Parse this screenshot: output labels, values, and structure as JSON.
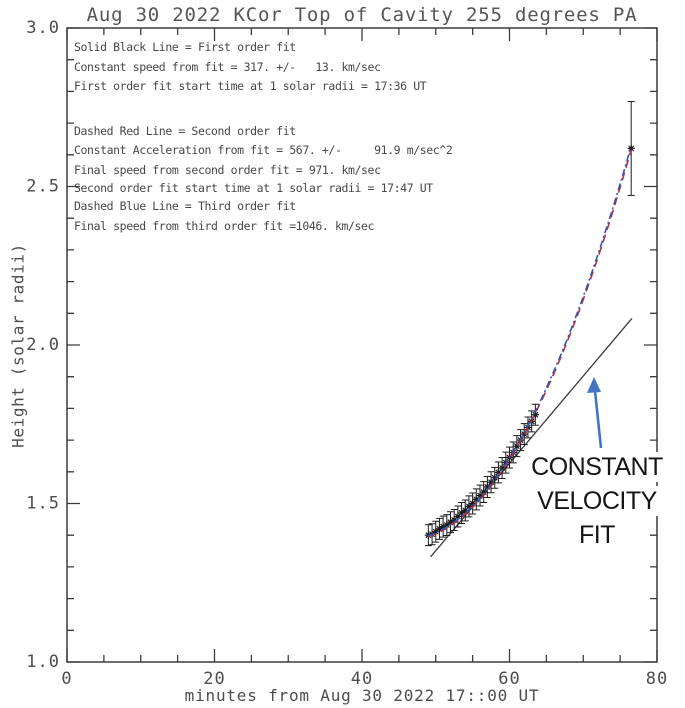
{
  "title": "Aug 30 2022 KCor Top of Cavity 255 degrees PA",
  "legend": {
    "first_order": [
      "Solid Black Line = First order fit",
      "Constant speed from fit = 317. +/-   13. km/sec",
      "First order fit start time at 1 solar radii = 17:36 UT"
    ],
    "second_order": [
      "Dashed Red Line = Second order fit",
      "Constant Acceleration from fit = 567. +/-     91.9 m/sec^2",
      "Final speed from second order fit = 971. km/sec",
      "Second order fit start time at 1 solar radii = 17:47 UT"
    ],
    "third_order": [
      "Dashed Blue Line = Third order fit",
      "Final speed from third order fit =1046. km/sec"
    ]
  },
  "annotation": {
    "lines": [
      "CONSTANT",
      "VELOCITY",
      "FIT"
    ],
    "arrow_color": "#4472c4"
  },
  "colors": {
    "frame": "#3c3c3c",
    "tick_text": "#4d4d4d",
    "observation": "#1c1c1c",
    "first_order_line": "#3a3a3a",
    "second_order_line": "#bf2a3e",
    "third_order_line": "#2f57b8"
  },
  "chart_data": {
    "type": "scatter",
    "title": "Aug 30 2022 KCor Top of Cavity 255 degrees PA",
    "xlabel": "minutes from Aug 30 2022 17::00 UT",
    "ylabel": "Height (solar radii)",
    "xlim": [
      0,
      80
    ],
    "ylim": [
      1.0,
      3.0
    ],
    "x_major_ticks": [
      0,
      20,
      40,
      60,
      80
    ],
    "x_minor_step": 5,
    "y_major_ticks": [
      1.0,
      1.5,
      2.0,
      2.5,
      3.0
    ],
    "y_minor_step": 0.1,
    "grid": false,
    "series": [
      {
        "name": "height-time observations",
        "type": "scatter",
        "marker": "asterisk",
        "points": [
          [
            49.0,
            1.4,
            0.033
          ],
          [
            49.5,
            1.403,
            0.033
          ],
          [
            50.0,
            1.411,
            0.033
          ],
          [
            50.5,
            1.42,
            0.033
          ],
          [
            51.0,
            1.427,
            0.033
          ],
          [
            51.5,
            1.432,
            0.033
          ],
          [
            52.0,
            1.441,
            0.033
          ],
          [
            52.5,
            1.448,
            0.033
          ],
          [
            53.0,
            1.459,
            0.033
          ],
          [
            53.5,
            1.47,
            0.033
          ],
          [
            54.0,
            1.478,
            0.033
          ],
          [
            54.5,
            1.491,
            0.033
          ],
          [
            55.0,
            1.5,
            0.033
          ],
          [
            55.5,
            1.513,
            0.033
          ],
          [
            56.0,
            1.525,
            0.033
          ],
          [
            56.5,
            1.536,
            0.033
          ],
          [
            57.0,
            1.552,
            0.033
          ],
          [
            57.5,
            1.567,
            0.033
          ],
          [
            58.0,
            1.581,
            0.033
          ],
          [
            58.5,
            1.598,
            0.033
          ],
          [
            59.0,
            1.612,
            0.033
          ],
          [
            59.5,
            1.629,
            0.033
          ],
          [
            60.0,
            1.645,
            0.033
          ],
          [
            60.5,
            1.661,
            0.033
          ],
          [
            61.0,
            1.681,
            0.033
          ],
          [
            61.5,
            1.7,
            0.033
          ],
          [
            62.0,
            1.719,
            0.033
          ],
          [
            62.5,
            1.74,
            0.033
          ],
          [
            63.0,
            1.759,
            0.033
          ],
          [
            63.5,
            1.78,
            0.033
          ],
          [
            76.5,
            2.62,
            0.148
          ]
        ]
      },
      {
        "name": "first order fit (constant velocity 317 km/sec)",
        "type": "line",
        "style": "solid",
        "endpoints": [
          [
            49.3,
            1.332
          ],
          [
            76.6,
            2.084
          ]
        ]
      },
      {
        "name": "second order fit (constant acceleration 567 m/sec^2)",
        "type": "line",
        "style": "dashed",
        "anchors": [
          [
            49.0,
            1.396
          ],
          [
            63.0,
            1.762
          ],
          [
            76.5,
            2.616
          ]
        ]
      },
      {
        "name": "third order fit (final speed 1046 km/sec)",
        "type": "line",
        "style": "dash-dot",
        "anchors": [
          [
            48.9,
            1.398
          ],
          [
            63.0,
            1.768
          ],
          [
            76.45,
            2.624
          ]
        ]
      }
    ]
  }
}
